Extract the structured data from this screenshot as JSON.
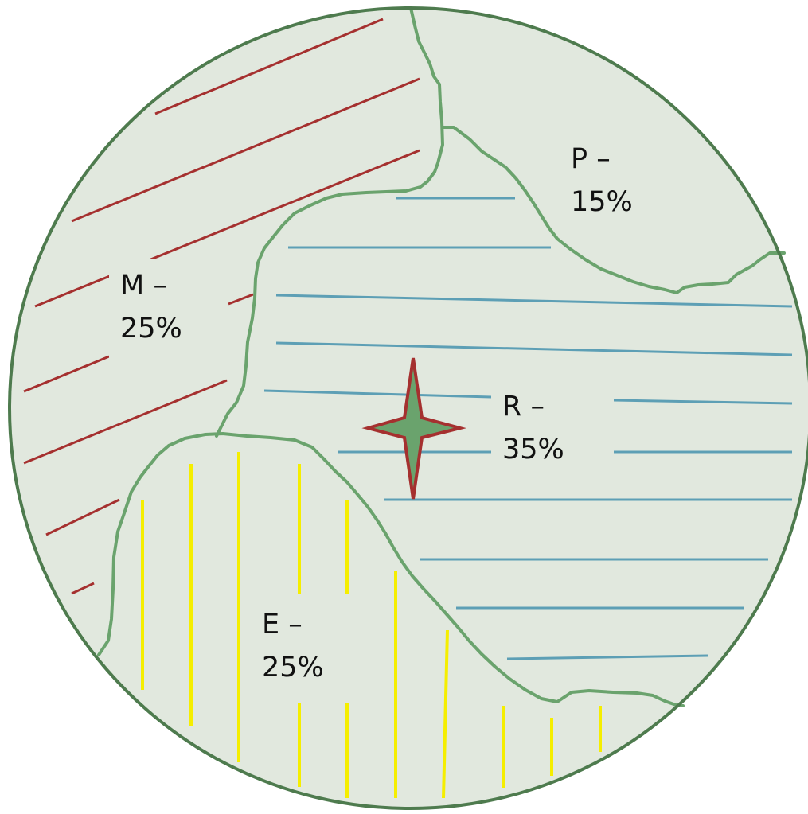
{
  "diagram": {
    "colors": {
      "disc_fill": "#e1e8de",
      "disc_border": "#4e7b4e",
      "boundary_line": "#6aa36d",
      "hatch_m": "#a5302f",
      "hatch_r": "#5d9fb5",
      "hatch_e": "#f5ee00",
      "star_fill": "#6aa36d",
      "star_border": "#a5302f"
    },
    "regions": {
      "m": {
        "name": "M –",
        "share": "25%"
      },
      "p": {
        "name": "P –",
        "share": "15%"
      },
      "r": {
        "name": "R –",
        "share": "35%"
      },
      "e": {
        "name": "E –",
        "share": "25%"
      }
    },
    "marker_icon": "four-point-star-icon"
  }
}
